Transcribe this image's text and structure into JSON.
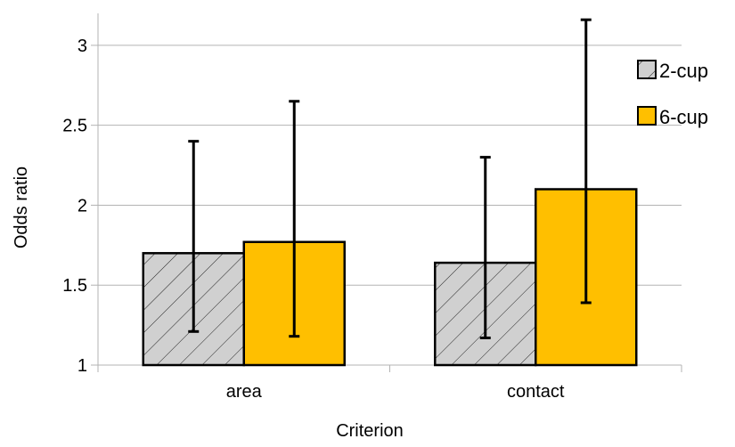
{
  "chart_data": {
    "type": "bar",
    "categories": [
      "area",
      "contact"
    ],
    "series": [
      {
        "name": "2-cup",
        "values": [
          1.7,
          1.64
        ],
        "error_low": [
          1.21,
          1.17
        ],
        "error_high": [
          2.4,
          2.3
        ],
        "color": "#d0d0d0",
        "pattern": "diagonal-hatch"
      },
      {
        "name": "6-cup",
        "values": [
          1.77,
          2.1
        ],
        "error_low": [
          1.18,
          1.39
        ],
        "error_high": [
          2.65,
          3.16
        ],
        "color": "#ffbf00",
        "pattern": "solid"
      }
    ],
    "xlabel": "Criterion",
    "ylabel": "Odds ratio",
    "ylim": [
      1,
      3.2
    ],
    "yticks": [
      1,
      1.5,
      2,
      2.5,
      3
    ],
    "ytick_labels": [
      "1",
      "1.5",
      "2",
      "2.5",
      "3"
    ],
    "grid": true,
    "legend_position": "top-right"
  }
}
